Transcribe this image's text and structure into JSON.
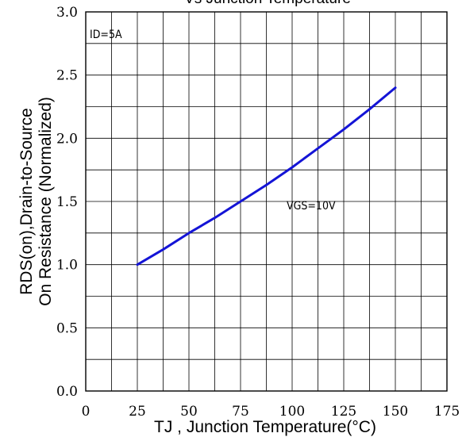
{
  "chart_data": {
    "type": "line",
    "title": "Vs Junction Temperature",
    "xlabel": "TJ , Junction Temperature(°C)",
    "ylabel_line1": "RDS(on),Drain-to-Source",
    "ylabel_line2": "On Resistance (Normalized)",
    "xlim": [
      0,
      175
    ],
    "ylim": [
      0,
      3.0
    ],
    "x_ticks": [
      "0",
      "25",
      "50",
      "75",
      "100",
      "125",
      "150",
      "175"
    ],
    "y_ticks": [
      "0.0",
      "0.5",
      "1.0",
      "1.5",
      "2.0",
      "2.5",
      "3.0"
    ],
    "grid": true,
    "annotations": [
      "ID=5A",
      "VGS=10V"
    ],
    "line_color": "#1414d6",
    "series": [
      {
        "x": [
          25,
          37.5,
          50,
          62.5,
          75,
          87.5,
          100,
          112.5,
          125,
          137.5,
          150
        ],
        "values": [
          1.0,
          1.12,
          1.25,
          1.37,
          1.5,
          1.63,
          1.77,
          1.92,
          2.07,
          2.23,
          2.4
        ]
      }
    ]
  }
}
